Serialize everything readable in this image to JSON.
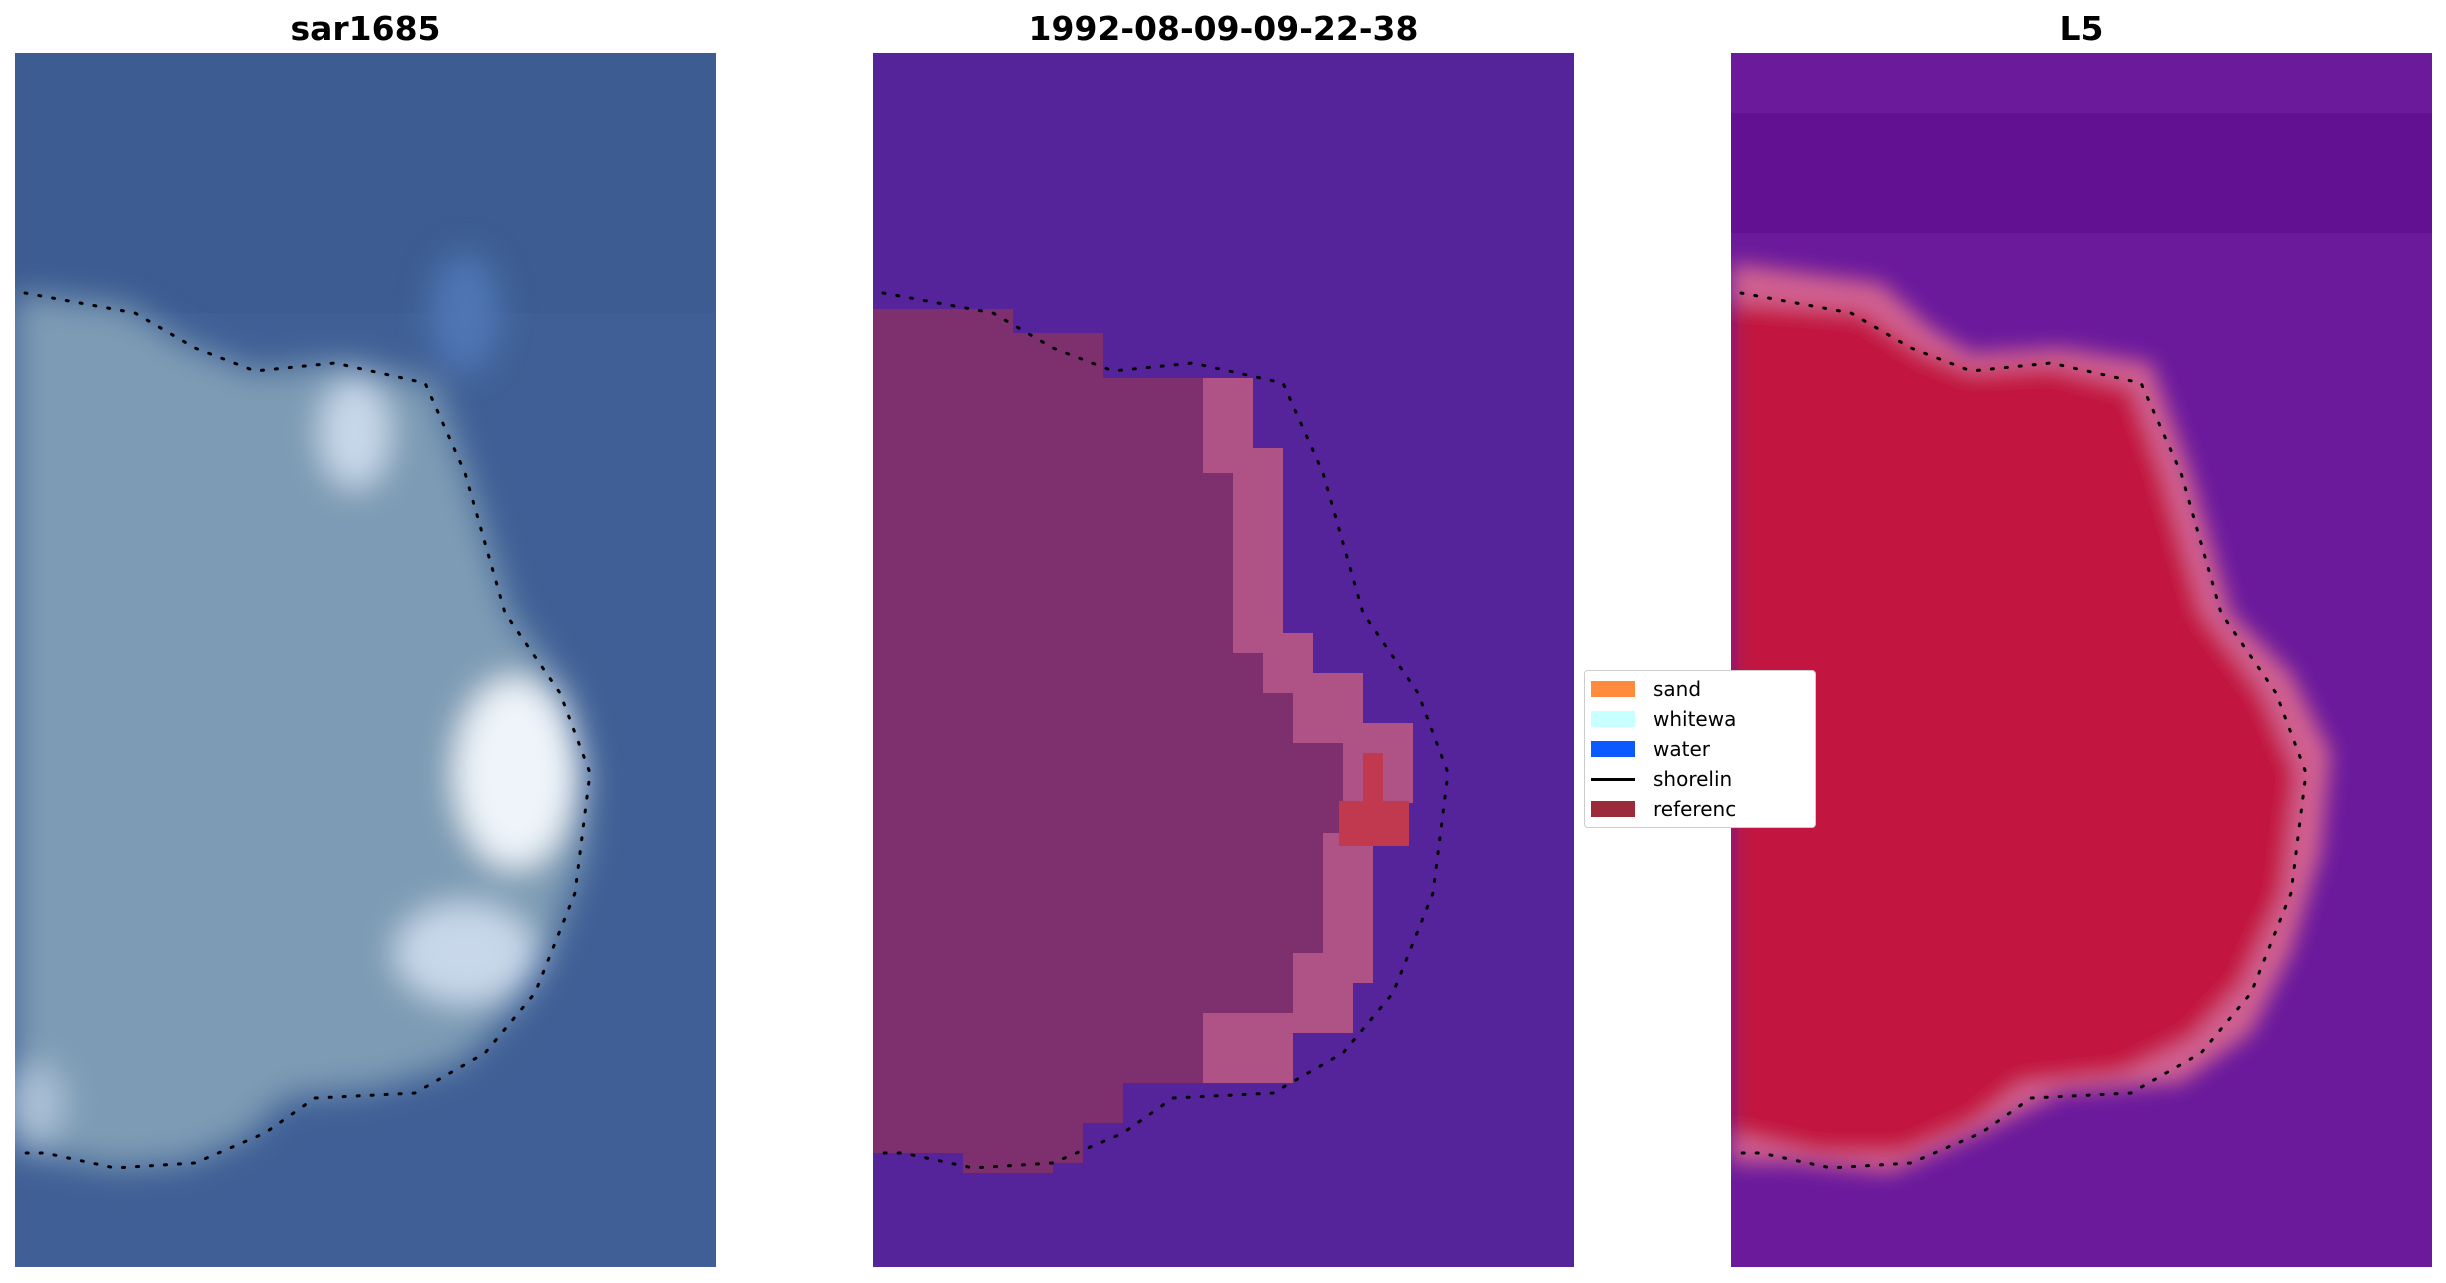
{
  "panels": [
    {
      "title": "sar1685"
    },
    {
      "title": "1992-08-09-09-22-38"
    },
    {
      "title": "L5"
    }
  ],
  "legend": {
    "items": [
      {
        "label": "sand",
        "kind": "patch",
        "color": "#ff8c3c"
      },
      {
        "label": "whitewa",
        "kind": "patch",
        "color": "#c8ffff"
      },
      {
        "label": "water",
        "kind": "patch",
        "color": "#0a5aff"
      },
      {
        "label": "shorelin",
        "kind": "line",
        "color": "#000000"
      },
      {
        "label": "referenc",
        "kind": "patch",
        "color": "#9b2a3a"
      }
    ]
  },
  "colors": {
    "sat_water": "#3f5f96",
    "sat_land": "#7d9bb4",
    "sat_white": "#eef4fa",
    "cls_water": "#55239a",
    "cls_sand": "#7e2f6e",
    "cls_edge": "#c0608f",
    "cls_ref": "#c0394f",
    "prob_water": "#6b1a9c",
    "prob_land": "#c2123f",
    "prob_edge": "#d06090"
  }
}
